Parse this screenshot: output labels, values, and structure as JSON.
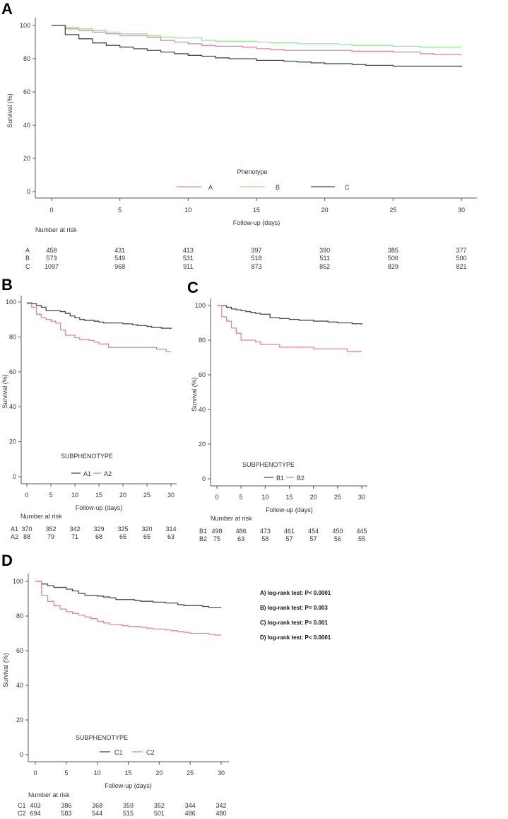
{
  "chart_data": [
    {
      "type": "line",
      "panel_label": "A",
      "xlabel": "Follow-up (days)",
      "ylabel": "Survival (%)",
      "xlim": [
        0,
        30
      ],
      "ylim": [
        0,
        100
      ],
      "xticks": [
        "0",
        "5",
        "10",
        "15",
        "20",
        "25",
        "30"
      ],
      "yticks": [
        "0",
        "20",
        "40",
        "60",
        "80",
        "100"
      ],
      "legend_title": "Phenotype",
      "risk_title": "Number at risk",
      "series": [
        {
          "name": "A",
          "color": "#e8849d",
          "x": [
            0,
            1,
            2,
            3,
            4,
            5,
            7,
            8,
            9,
            10,
            11,
            12,
            14,
            15,
            16,
            17,
            20,
            22,
            25,
            27,
            28,
            30
          ],
          "y": [
            100,
            98,
            97,
            96,
            95,
            94,
            93,
            91,
            90,
            89,
            88,
            87.5,
            87,
            86,
            85.5,
            85,
            85,
            84.5,
            84,
            83,
            82.5,
            82
          ],
          "at_risk": [
            "458",
            "431",
            "413",
            "397",
            "390",
            "385",
            "377"
          ]
        },
        {
          "name": "B",
          "color": "#98e898",
          "x": [
            0,
            1,
            2,
            3,
            4,
            5,
            7,
            8,
            9,
            11,
            12,
            15,
            16,
            18,
            21,
            22,
            25,
            27,
            30
          ],
          "y": [
            100,
            99,
            98,
            97,
            96,
            95,
            94,
            93,
            92.5,
            91,
            90.5,
            90,
            89.5,
            89,
            88.5,
            88,
            87.5,
            87,
            87
          ],
          "at_risk": [
            "573",
            "549",
            "531",
            "518",
            "511",
            "506",
            "500"
          ]
        },
        {
          "name": "C",
          "color": "#4a4a4a",
          "x": [
            0,
            1,
            2,
            3,
            4,
            5,
            6,
            7,
            8,
            9,
            10,
            11,
            12,
            13,
            15,
            17,
            18,
            19,
            20,
            22,
            23,
            25,
            30
          ],
          "y": [
            100,
            94.5,
            92,
            89.5,
            88,
            87,
            86,
            85,
            84,
            83,
            82,
            81.5,
            80.5,
            80,
            79,
            78.5,
            78,
            77.5,
            77,
            76.5,
            76,
            75.5,
            75
          ],
          "at_risk": [
            "1097",
            "968",
            "911",
            "873",
            "852",
            "829",
            "821"
          ]
        }
      ]
    },
    {
      "type": "line",
      "panel_label": "B",
      "xlabel": "Follow-up (days)",
      "ylabel": "Survival (%)",
      "xlim": [
        0,
        30
      ],
      "ylim": [
        0,
        100
      ],
      "xticks": [
        "0",
        "5",
        "10",
        "15",
        "20",
        "25",
        "30"
      ],
      "yticks": [
        "0",
        "20",
        "40",
        "60",
        "80",
        "100"
      ],
      "legend_title": "SUBPHENOTYPE",
      "risk_title": "Number at risk",
      "series": [
        {
          "name": "A1",
          "color": "#4a4a4a",
          "x": [
            0,
            1,
            2,
            3,
            4,
            7,
            8,
            9,
            10,
            11,
            12,
            14,
            15,
            16,
            20,
            22,
            23,
            25,
            26,
            28,
            30
          ],
          "y": [
            99.5,
            99,
            98,
            97,
            95,
            94.5,
            93.5,
            92,
            91,
            90,
            89.5,
            89,
            88.5,
            88,
            87.5,
            87,
            86.5,
            86,
            85.5,
            85,
            84.5
          ],
          "at_risk": [
            "370",
            "352",
            "342",
            "329",
            "325",
            "320",
            "314"
          ]
        },
        {
          "name": "A2",
          "color": "#e8849d",
          "x": [
            0,
            1,
            2,
            3,
            4,
            5,
            6,
            7,
            8,
            10,
            11,
            13,
            14,
            15,
            17,
            27,
            29,
            30
          ],
          "y": [
            99,
            97,
            93,
            91,
            90,
            89,
            88,
            84,
            81,
            79.5,
            78.5,
            78,
            77,
            76,
            74,
            73,
            71.5,
            71.5
          ],
          "at_risk": [
            "88",
            "79",
            "71",
            "68",
            "65",
            "65",
            "63"
          ]
        }
      ]
    },
    {
      "type": "line",
      "panel_label": "C",
      "xlabel": "Follow-up (days)",
      "ylabel": "Survival (%)",
      "xlim": [
        0,
        30
      ],
      "ylim": [
        0,
        100
      ],
      "xticks": [
        "0",
        "5",
        "10",
        "15",
        "20",
        "25",
        "30"
      ],
      "yticks": [
        "0",
        "20",
        "40",
        "60",
        "80",
        "100"
      ],
      "legend_title": "SUBPHENOTYPE",
      "risk_title": "Number at risk",
      "series": [
        {
          "name": "B1",
          "color": "#4a4a4a",
          "x": [
            0,
            2,
            3,
            4,
            5,
            6,
            7,
            8,
            9,
            11,
            13,
            15,
            17,
            20,
            23,
            25,
            28,
            30
          ],
          "y": [
            100,
            99,
            98,
            97.5,
            97,
            96.5,
            96,
            95.5,
            95,
            93,
            92.5,
            92,
            91.5,
            91,
            90.5,
            90,
            89.5,
            89
          ],
          "at_risk": [
            "498",
            "486",
            "473",
            "461",
            "454",
            "450",
            "445"
          ]
        },
        {
          "name": "B2",
          "color": "#e8849d",
          "x": [
            0,
            1,
            2,
            3,
            4,
            5,
            8,
            9,
            13,
            20,
            27,
            30
          ],
          "y": [
            100,
            93.5,
            91,
            87,
            84,
            80,
            79,
            77.5,
            76,
            75,
            73.5,
            73.5
          ],
          "at_risk": [
            "75",
            "63",
            "58",
            "57",
            "57",
            "56",
            "55"
          ]
        }
      ]
    },
    {
      "type": "line",
      "panel_label": "D",
      "xlabel": "Follow-up (days)",
      "ylabel": "Survival (%)",
      "xlim": [
        0,
        30
      ],
      "ylim": [
        0,
        100
      ],
      "xticks": [
        "0",
        "5",
        "10",
        "15",
        "20",
        "25",
        "30"
      ],
      "yticks": [
        "0",
        "20",
        "40",
        "60",
        "80",
        "100"
      ],
      "legend_title": "SUBPHENOTYPE",
      "risk_title": "Number at risk",
      "series": [
        {
          "name": "C1",
          "color": "#4a4a4a",
          "x": [
            0,
            1,
            2,
            3,
            5,
            6,
            7,
            8,
            10,
            11,
            12,
            13,
            16,
            17,
            19,
            21,
            23,
            24,
            27,
            28,
            30
          ],
          "y": [
            100,
            98.5,
            97.5,
            96.5,
            95.5,
            94.5,
            93,
            92,
            91.5,
            91,
            90.5,
            89.5,
            89,
            88.5,
            88,
            87.5,
            86.5,
            86,
            85.5,
            85,
            85
          ],
          "at_risk": [
            "403",
            "386",
            "368",
            "359",
            "352",
            "344",
            "342"
          ]
        },
        {
          "name": "C2",
          "color": "#e8849d",
          "x": [
            0,
            1,
            2,
            3,
            4,
            5,
            6,
            7,
            8,
            9,
            10,
            11,
            12,
            14,
            15,
            17,
            18,
            19,
            21,
            22,
            23,
            24,
            25,
            28,
            29,
            30
          ],
          "y": [
            100,
            92,
            88.5,
            86,
            84,
            82.5,
            81.5,
            80.5,
            79.5,
            78.5,
            77,
            76,
            75,
            74.5,
            74,
            73.5,
            73,
            72.5,
            72,
            71.5,
            71,
            70.5,
            70,
            69.5,
            69,
            69
          ],
          "at_risk": [
            "694",
            "583",
            "544",
            "515",
            "501",
            "486",
            "480"
          ]
        }
      ]
    }
  ],
  "logrank": [
    "A) log-rank test: P< 0.0001",
    "B) log-rank test: P= 0.003",
    "C) log-rank test: P= 0.001",
    "D) log-rank test: P< 0.0001"
  ]
}
